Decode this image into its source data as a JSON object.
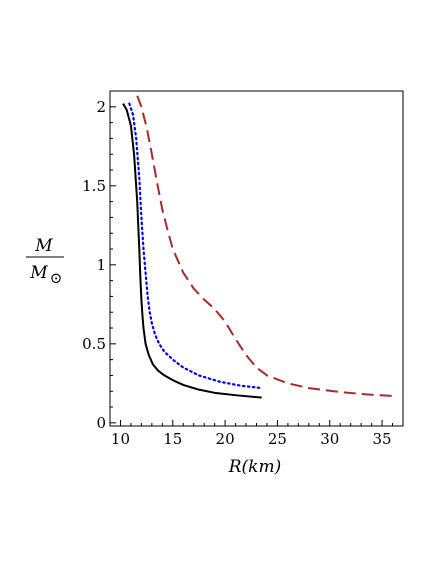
{
  "chart_data": {
    "type": "line",
    "xlabel": "R(km)",
    "ylabel": {
      "numerator": "M",
      "denominator": "M",
      "sub": "⊙"
    },
    "xlim": [
      9,
      37
    ],
    "ylim": [
      -0.02,
      2.1
    ],
    "xticks": [
      10,
      15,
      20,
      25,
      30,
      35
    ],
    "yticks": [
      0,
      0.5,
      1,
      1.5,
      2
    ],
    "xtick_labels": [
      "10",
      "15",
      "20",
      "25",
      "30",
      "35"
    ],
    "ytick_labels": [
      "0",
      "0.5",
      "1",
      "1.5",
      "2"
    ],
    "series": [
      {
        "style": "solid",
        "color": "#000000",
        "x": [
          10.25,
          10.6,
          11.0,
          11.3,
          11.6,
          11.8,
          11.9,
          12.0,
          12.1,
          12.2,
          12.4,
          12.7,
          13.1,
          13.6,
          14.2,
          15.0,
          16.0,
          17.5,
          19.0,
          21.0,
          23.5
        ],
        "y": [
          2.02,
          1.98,
          1.88,
          1.7,
          1.4,
          1.1,
          0.92,
          0.78,
          0.68,
          0.6,
          0.5,
          0.43,
          0.37,
          0.33,
          0.3,
          0.27,
          0.24,
          0.21,
          0.19,
          0.175,
          0.16
        ]
      },
      {
        "style": "dotted",
        "color": "#0000ee",
        "x": [
          10.85,
          11.2,
          11.5,
          11.8,
          12.0,
          12.2,
          12.4,
          12.6,
          12.8,
          13.0,
          13.3,
          13.7,
          14.2,
          15.0,
          16.0,
          17.5,
          19.5,
          21.5,
          23.5
        ],
        "y": [
          2.02,
          1.95,
          1.8,
          1.55,
          1.3,
          1.1,
          0.95,
          0.8,
          0.7,
          0.63,
          0.56,
          0.5,
          0.45,
          0.4,
          0.35,
          0.3,
          0.26,
          0.235,
          0.22
        ]
      },
      {
        "style": "dashed",
        "color": "#a52a2a",
        "x": [
          11.6,
          12.0,
          12.5,
          13.0,
          13.5,
          14.0,
          14.5,
          15.0,
          16.0,
          17.0,
          18.0,
          19.0,
          20.0,
          21.0,
          22.0,
          23.0,
          24.0,
          26.0,
          28.0,
          31.0,
          33.5,
          36.0
        ],
        "y": [
          2.07,
          2.0,
          1.87,
          1.7,
          1.52,
          1.35,
          1.22,
          1.1,
          0.95,
          0.85,
          0.78,
          0.72,
          0.64,
          0.53,
          0.43,
          0.35,
          0.3,
          0.25,
          0.22,
          0.195,
          0.18,
          0.17
        ]
      }
    ]
  }
}
